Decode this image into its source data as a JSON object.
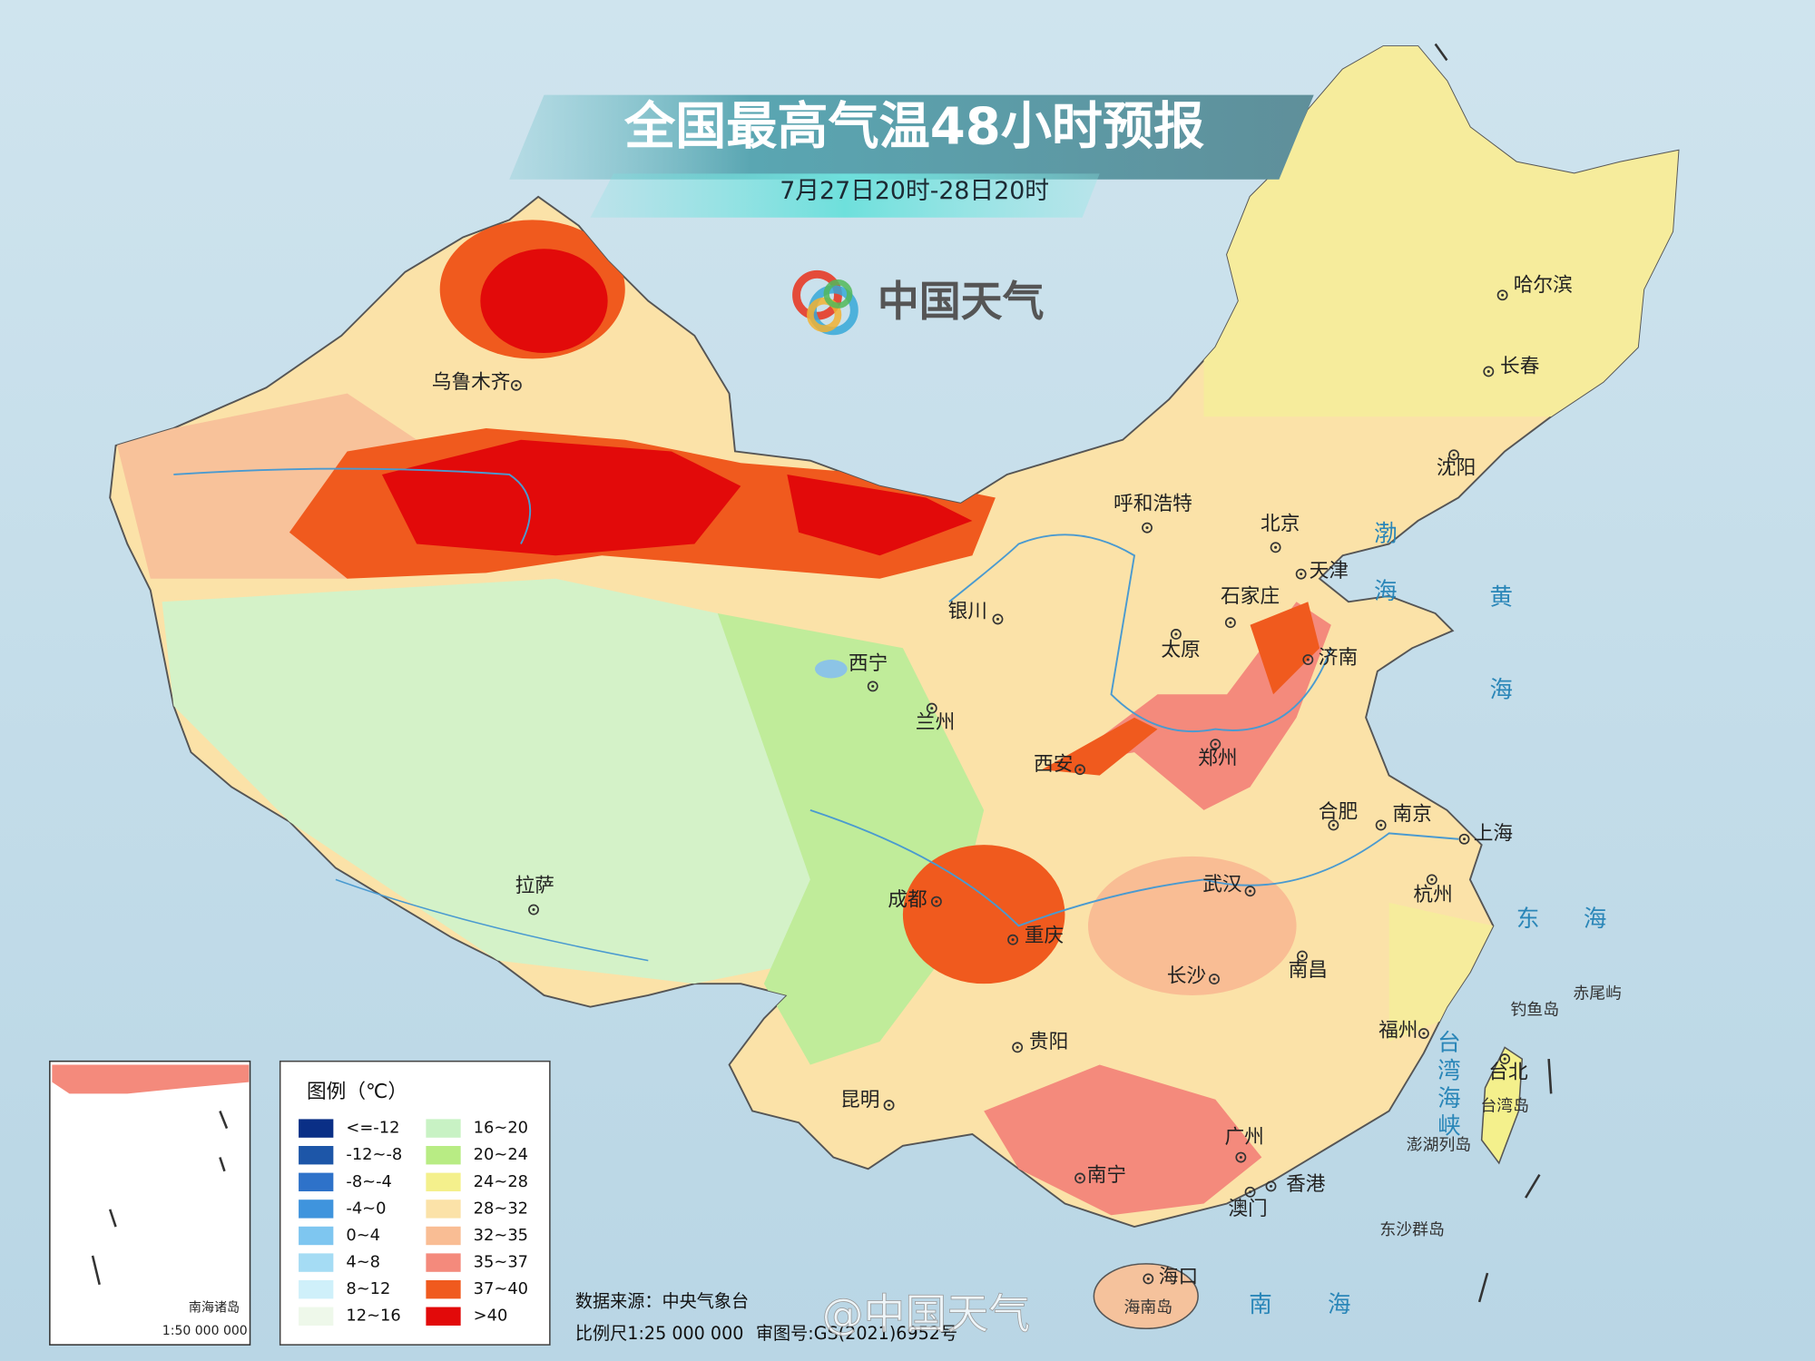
{
  "title": "全国最高气温48小时预报",
  "subtitle": "7月27日20时-28日20时",
  "brand": "中国天气",
  "cities": [
    "乌鲁木齐",
    "哈尔滨",
    "长春",
    "沈阳",
    "呼和浩特",
    "北京",
    "天津",
    "石家庄",
    "太原",
    "济南",
    "银川",
    "西宁",
    "兰州",
    "西安",
    "郑州",
    "合肥",
    "南京",
    "上海",
    "杭州",
    "武汉",
    "成都",
    "重庆",
    "拉萨",
    "长沙",
    "南昌",
    "贵阳",
    "福州",
    "台北",
    "昆明",
    "广州",
    "南宁",
    "香港",
    "澳门",
    "海口"
  ],
  "places": [
    "台湾岛",
    "海南岛",
    "钓鱼岛",
    "赤尾屿",
    "澎湖列岛",
    "东沙群岛"
  ],
  "seas": [
    "渤海",
    "黄海",
    "东海",
    "南海",
    "台湾海峡"
  ],
  "legend": {
    "title": "图例（℃）",
    "items": [
      {
        "label": "<=-12",
        "color": "#0a2f86"
      },
      {
        "label": "-12~-8",
        "color": "#1d56a8"
      },
      {
        "label": "-8~-4",
        "color": "#2e72c9"
      },
      {
        "label": "-4~0",
        "color": "#3f94dd"
      },
      {
        "label": "0~4",
        "color": "#7ec6f0"
      },
      {
        "label": "4~8",
        "color": "#a5dcf4"
      },
      {
        "label": "8~12",
        "color": "#cff0fa"
      },
      {
        "label": "12~16",
        "color": "#eef8ea"
      },
      {
        "label": "16~20",
        "color": "#c8f2c4"
      },
      {
        "label": "20~24",
        "color": "#b8ec84"
      },
      {
        "label": "24~28",
        "color": "#f4f08c"
      },
      {
        "label": "28~32",
        "color": "#fbe2a8"
      },
      {
        "label": "32~35",
        "color": "#f9bd94"
      },
      {
        "label": "35~37",
        "color": "#f48a7c"
      },
      {
        "label": "37~40",
        "color": "#f05a1e"
      },
      {
        "label": ">40",
        "color": "#e20a0a"
      }
    ]
  },
  "inset": {
    "title": "南海诸岛",
    "scale": "1:50 000 000"
  },
  "source": "数据来源：中央气象台",
  "scale": "比例尺1:25 000 000",
  "approval": "审图号:GS(2021)6952号",
  "watermark": "@中国天气"
}
